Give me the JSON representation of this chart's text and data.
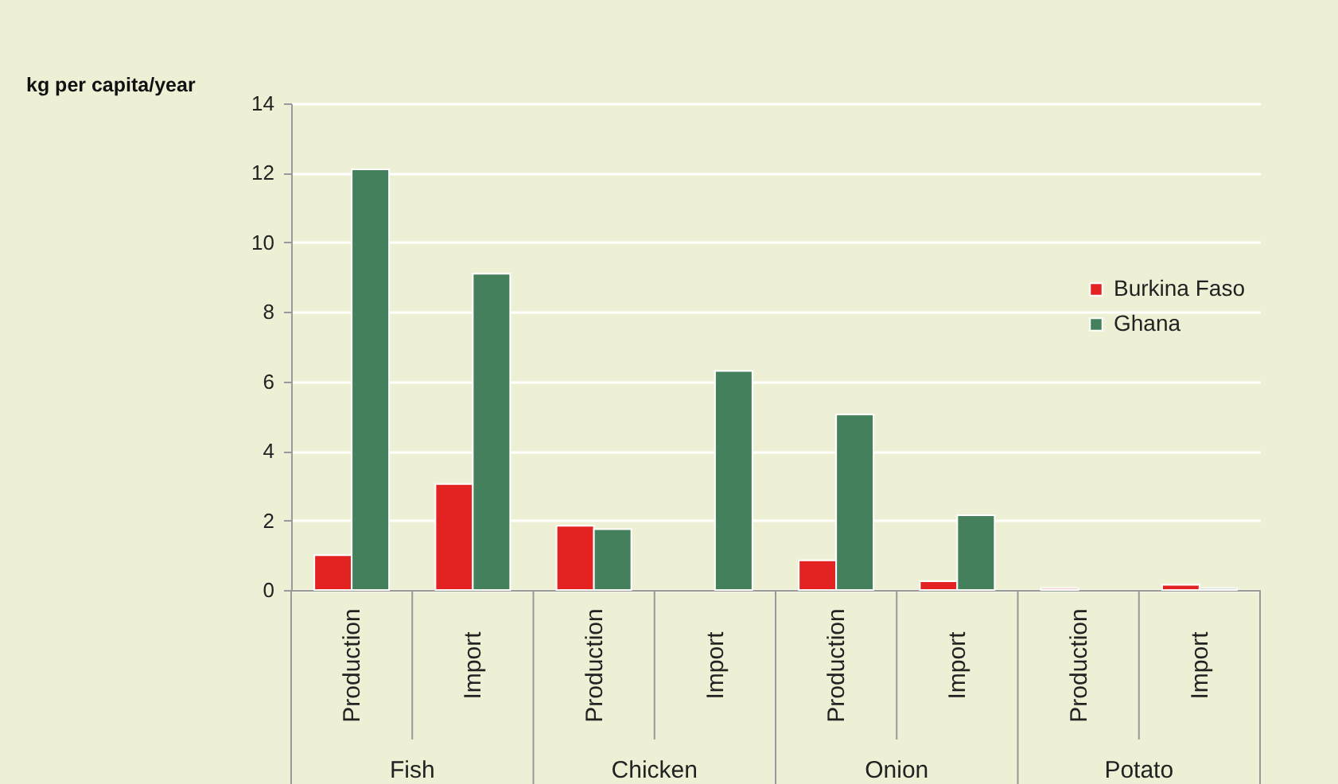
{
  "chart_data": {
    "type": "bar",
    "ylabel": "kg per capita/year",
    "categories": [
      "Production",
      "Import",
      "Production",
      "Import",
      "Production",
      "Import",
      "Production",
      "Import"
    ],
    "annotations": [
      "Fish",
      "Chicken",
      "Onion",
      "Potato"
    ],
    "series": [
      {
        "name": "Burkina Faso",
        "color": "#e32322",
        "values": [
          1.0,
          3.05,
          1.85,
          null,
          0.85,
          0.25,
          0.05,
          0.15
        ]
      },
      {
        "name": "Ghana",
        "color": "#44805b",
        "values": [
          12.1,
          9.1,
          1.75,
          6.3,
          5.05,
          2.15,
          null,
          0.05
        ]
      }
    ],
    "ylim": [
      0,
      14
    ],
    "yticks": [
      0,
      2,
      4,
      6,
      8,
      10,
      12,
      14
    ],
    "grid": "y",
    "legend": "right"
  }
}
